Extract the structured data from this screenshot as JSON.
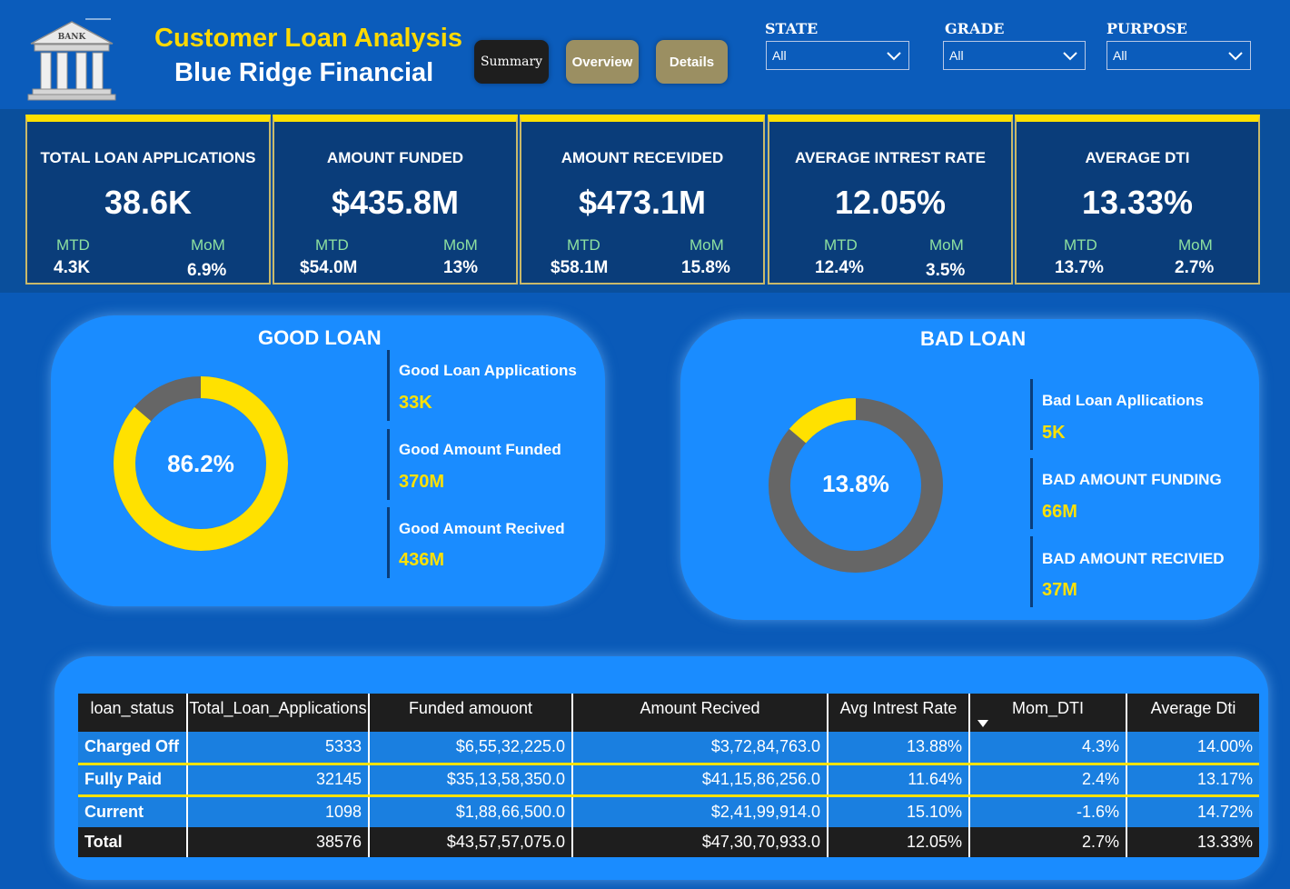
{
  "header": {
    "title": "Customer Loan Analysis",
    "subtitle": "Blue Ridge Financial",
    "logo_text": "BANK",
    "nav": {
      "summary": "Summary",
      "overview": "Overview",
      "details": "Details"
    }
  },
  "filters": [
    {
      "label": "STATE",
      "value": "All"
    },
    {
      "label": "GRADE",
      "value": "All"
    },
    {
      "label": "PURPOSE",
      "value": "All"
    }
  ],
  "kpis": [
    {
      "title": "TOTAL LOAN APPLICATIONS",
      "value": "38.6K",
      "mtd_label": "MTD",
      "mtd": "4.3K",
      "mom_label": "MoM",
      "mom": "6.9%"
    },
    {
      "title": "AMOUNT FUNDED",
      "value": "$435.8M",
      "mtd_label": "MTD",
      "mtd": "$54.0M",
      "mom_label": "MoM",
      "mom": "13%"
    },
    {
      "title": "AMOUNT RECEVIDED",
      "value": "$473.1M",
      "mtd_label": "MTD",
      "mtd": "$58.1M",
      "mom_label": "MoM",
      "mom": "15.8%"
    },
    {
      "title": "AVERAGE INTREST RATE",
      "value": "12.05%",
      "mtd_label": "MTD",
      "mtd": "12.4%",
      "mom_label": "MoM",
      "mom": "3.5%"
    },
    {
      "title": "AVERAGE DTI",
      "value": "13.33%",
      "mtd_label": "MTD",
      "mtd": "13.7%",
      "mom_label": "MoM",
      "mom": "2.7%"
    }
  ],
  "good_loan": {
    "title": "GOOD LOAN",
    "percent_label": "86.2%",
    "percent": 86.2,
    "stats": [
      {
        "label": "Good Loan Applications",
        "value": "33K"
      },
      {
        "label": "Good Amount Funded",
        "value": "370M"
      },
      {
        "label": "Good Amount Recived",
        "value": "436M"
      }
    ]
  },
  "bad_loan": {
    "title": "BAD LOAN",
    "percent_label": "13.8%",
    "percent": 13.8,
    "stats": [
      {
        "label": "Bad Loan Apllications",
        "value": "5K"
      },
      {
        "label": "BAD AMOUNT FUNDING",
        "value": "66M"
      },
      {
        "label": "BAD AMOUNT RECIVIED",
        "value": "37M"
      }
    ]
  },
  "colors": {
    "accent": "#ffe100",
    "ring_gray": "#666666",
    "panel": "#1a8cff"
  },
  "table": {
    "headers": [
      "loan_status",
      "Total_Loan_Applications",
      "Funded amouont",
      "Amount Recived",
      "Avg Intrest Rate",
      "Mom_DTI",
      "Average Dti"
    ],
    "rows": [
      [
        "Charged Off",
        "5333",
        "$6,55,32,225.0",
        "$3,72,84,763.0",
        "13.88%",
        "4.3%",
        "14.00%"
      ],
      [
        "Fully Paid",
        "32145",
        "$35,13,58,350.0",
        "$41,15,86,256.0",
        "11.64%",
        "2.4%",
        "13.17%"
      ],
      [
        "Current",
        "1098",
        "$1,88,66,500.0",
        "$2,41,99,914.0",
        "15.10%",
        "-1.6%",
        "14.72%"
      ]
    ],
    "total": [
      "Total",
      "38576",
      "$43,57,57,075.0",
      "$47,30,70,933.0",
      "12.05%",
      "2.7%",
      "13.33%"
    ]
  }
}
